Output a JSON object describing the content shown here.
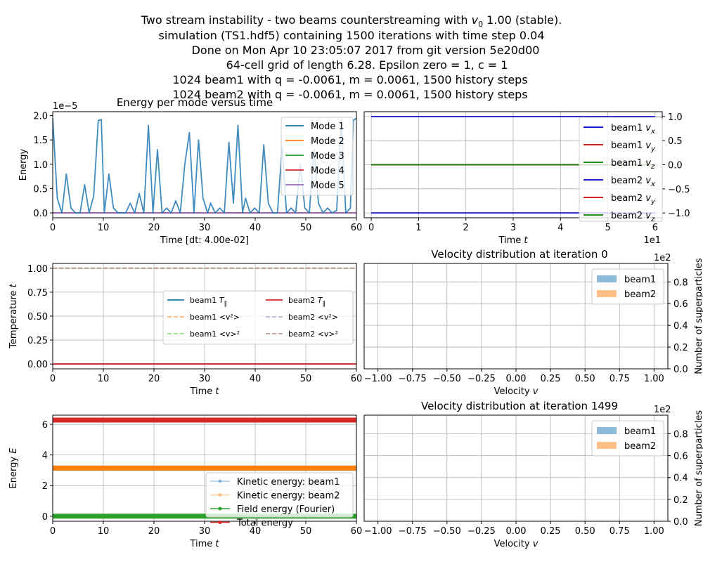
{
  "figure": {
    "title_lines": [
      "Two stream instability - two beams counterstreaming with v0 1.00 (stable).",
      "simulation (TS1.hdf5) containing 1500 iterations with time step 0.04",
      "Done on Mon Apr 10 23:05:07 2017 from git version 5e20d00",
      "64-cell grid of length 6.28. Epsilon zero = 1, c = 1",
      "1024 beam1 with q = -0.0061, m = 0.0061, 1500 history steps",
      "1024 beam2 with q = -0.0061, m = 0.0061, 1500 history steps"
    ]
  },
  "chart_data": [
    {
      "id": "energy_per_mode",
      "type": "line",
      "title": "Energy per mode versus time",
      "xlabel": "Time [dt: 4.00e-02]",
      "ylabel": "Energy",
      "y_exponent_label": "1e−5",
      "xlim": [
        0,
        60
      ],
      "ylim": [
        -0.1,
        2.08
      ],
      "xticks": [
        "0",
        "10",
        "20",
        "30",
        "40",
        "50",
        "60"
      ],
      "yticks": [
        "0.0",
        "0.5",
        "1.0",
        "1.5",
        "2.0"
      ],
      "grid": false,
      "legend_position": "upper-right",
      "series": [
        {
          "name": "Mode 1",
          "color": "#1f77b4",
          "x": [
            0,
            0.9,
            1.8,
            2.7,
            3.6,
            4.5,
            5.4,
            6.3,
            7.2,
            8.1,
            9.0,
            9.6,
            10.2,
            11.1,
            12.0,
            12.9,
            13.8,
            14.4,
            15.3,
            16.2,
            17.1,
            18.0,
            18.9,
            19.8,
            20.7,
            21.6,
            22.5,
            23.4,
            24.3,
            25.2,
            26.1,
            27.0,
            27.9,
            28.8,
            29.7,
            30.6,
            31.2,
            32.1,
            33.0,
            33.9,
            34.8,
            35.7,
            36.6,
            37.5,
            38.1,
            39.0,
            39.9,
            40.8,
            41.7,
            42.6,
            43.5,
            44.4,
            45.3,
            46.2,
            47.1,
            48.0,
            48.9,
            49.8,
            50.7,
            51.6,
            52.5,
            53.4,
            54.3,
            55.2,
            56.1,
            57.0,
            57.9,
            58.8,
            59.4,
            60
          ],
          "y": [
            1.95,
            0.3,
            0.0,
            0.8,
            0.1,
            0.0,
            0.0,
            0.58,
            0.0,
            0.35,
            1.9,
            1.92,
            0.0,
            0.8,
            0.1,
            0.0,
            0.0,
            0.0,
            0.2,
            0.0,
            0.4,
            0.0,
            1.8,
            0.0,
            1.3,
            0.0,
            0.1,
            0.0,
            0.25,
            0.0,
            1.0,
            1.65,
            0.0,
            1.5,
            0.3,
            0.0,
            0.2,
            0.0,
            0.1,
            0.0,
            1.45,
            0.2,
            1.8,
            0.0,
            0.3,
            0.0,
            0.1,
            0.0,
            1.4,
            0.2,
            0.0,
            0.0,
            1.35,
            0.0,
            0.1,
            0.0,
            1.0,
            0.1,
            0.0,
            1.3,
            0.2,
            0.0,
            0.1,
            0.0,
            0.05,
            1.9,
            0.0,
            0.1,
            1.9,
            1.95
          ]
        },
        {
          "name": "Mode 2",
          "color": "#ff7f0e",
          "x": [
            0,
            60
          ],
          "y": [
            0,
            0
          ]
        },
        {
          "name": "Mode 3",
          "color": "#2ca02c",
          "x": [
            0,
            60
          ],
          "y": [
            0,
            0
          ]
        },
        {
          "name": "Mode 4",
          "color": "#d62728",
          "x": [
            0,
            60
          ],
          "y": [
            0,
            0
          ]
        },
        {
          "name": "Mode 5",
          "color": "#9467bd",
          "x": [
            0,
            60
          ],
          "y": [
            0,
            0
          ]
        }
      ]
    },
    {
      "id": "mean_velocity",
      "type": "line",
      "xlabel": "Time t",
      "x_exponent_label": "1e1",
      "xlim": [
        -0.15,
        6.15
      ],
      "ylim": [
        -1.1,
        1.1
      ],
      "xticks": [
        "0",
        "1",
        "2",
        "3",
        "4",
        "5",
        "6"
      ],
      "yticks": [
        "1.0",
        "0.5",
        "0.0",
        "−0.5",
        "−1.0"
      ],
      "y_axis_side": "right",
      "grid": true,
      "legend_position": "right",
      "series": [
        {
          "name": "beam1 vx",
          "color": "#0000cc",
          "x": [
            0,
            6
          ],
          "y": [
            1,
            1
          ]
        },
        {
          "name": "beam1 vy",
          "color": "#cc0000",
          "x": [
            0,
            6
          ],
          "y": [
            0,
            0
          ]
        },
        {
          "name": "beam1 vz",
          "color": "#008000",
          "x": [
            0,
            6
          ],
          "y": [
            0,
            0
          ]
        },
        {
          "name": "beam2 vx",
          "color": "#0000cc",
          "x": [
            0,
            6
          ],
          "y": [
            -1,
            -1
          ]
        },
        {
          "name": "beam2 vy",
          "color": "#cc0000",
          "x": [
            0,
            6
          ],
          "y": [
            0,
            0
          ]
        },
        {
          "name": "beam2 vz",
          "color": "#008000",
          "x": [
            0,
            6
          ],
          "y": [
            0,
            0
          ]
        }
      ]
    },
    {
      "id": "temperature",
      "type": "line",
      "xlabel": "Time t",
      "ylabel": "Temperature t",
      "xlim": [
        0,
        60
      ],
      "ylim": [
        -0.05,
        1.05
      ],
      "xticks": [
        "0",
        "10",
        "20",
        "30",
        "40",
        "50",
        "60"
      ],
      "yticks": [
        "0.00",
        "0.25",
        "0.50",
        "0.75",
        "1.00"
      ],
      "grid": true,
      "legend_position": "center-right",
      "series": [
        {
          "name": "beam1 T∥",
          "color": "#1f77b4",
          "x": [
            0,
            60
          ],
          "y": [
            0,
            0
          ]
        },
        {
          "name": "beam1 <v²>",
          "color": "#ffbb78",
          "x": [
            0,
            60
          ],
          "y": [
            1,
            1
          ]
        },
        {
          "name": "beam1 <v>²",
          "color": "#98df8a",
          "x": [
            0,
            60
          ],
          "y": [
            1,
            1
          ]
        },
        {
          "name": "beam2 T∥",
          "color": "#d62728",
          "x": [
            0,
            60
          ],
          "y": [
            0,
            0
          ]
        },
        {
          "name": "beam2 <v²>",
          "color": "#c5b0d5",
          "x": [
            0,
            60
          ],
          "y": [
            1,
            1
          ]
        },
        {
          "name": "beam2 <v>²",
          "color": "#c49c94",
          "x": [
            0,
            60
          ],
          "y": [
            1,
            1
          ]
        }
      ]
    },
    {
      "id": "velocity_distribution_0",
      "type": "bar",
      "title": "Velocity distribution at iteration 0",
      "xlabel": "Velocity v",
      "ylabel": "Number of superparticles",
      "y_exponent_label": "1e2",
      "xlim": [
        -1.1,
        1.1
      ],
      "ylim": [
        0,
        0.97
      ],
      "xticks": [
        "−1.00",
        "−0.75",
        "−0.50",
        "−0.25",
        "0.00",
        "0.25",
        "0.50",
        "0.75",
        "1.00"
      ],
      "yticks": [
        "0.0",
        "0.2",
        "0.4",
        "0.6",
        "0.8"
      ],
      "y_axis_side": "right",
      "grid": true,
      "legend_position": "upper-right",
      "series": [
        {
          "name": "beam1",
          "color": "#8ebad9"
        },
        {
          "name": "beam2",
          "color": "#ffbf86"
        }
      ]
    },
    {
      "id": "energy_totals",
      "type": "line",
      "xlabel": "Time t",
      "ylabel": "Energy E",
      "xlim": [
        0,
        60
      ],
      "ylim": [
        -0.33,
        6.6
      ],
      "xticks": [
        "0",
        "10",
        "20",
        "30",
        "40",
        "50",
        "60"
      ],
      "yticks": [
        "0",
        "2",
        "4",
        "6"
      ],
      "grid": true,
      "legend_position": "lower-right",
      "series": [
        {
          "name": "Kinetic energy: beam1",
          "color": "#1f77b4",
          "x": [
            0,
            60
          ],
          "y": [
            3.14,
            3.14
          ]
        },
        {
          "name": "Kinetic energy: beam2",
          "color": "#ff7f0e",
          "x": [
            0,
            60
          ],
          "y": [
            3.14,
            3.14
          ]
        },
        {
          "name": "Field energy (Fourier)",
          "color": "#2ca02c",
          "x": [
            0,
            60
          ],
          "y": [
            0.0,
            0.0
          ]
        },
        {
          "name": "Total energy",
          "color": "#d62728",
          "x": [
            0,
            60
          ],
          "y": [
            6.28,
            6.28
          ]
        }
      ]
    },
    {
      "id": "velocity_distribution_1499",
      "type": "bar",
      "title": "Velocity distribution at iteration 1499",
      "xlabel": "Velocity v",
      "ylabel": "Number of superparticles",
      "y_exponent_label": "1e2",
      "xlim": [
        -1.1,
        1.1
      ],
      "ylim": [
        0,
        0.97
      ],
      "xticks": [
        "−1.00",
        "−0.75",
        "−0.50",
        "−0.25",
        "0.00",
        "0.25",
        "0.50",
        "0.75",
        "1.00"
      ],
      "yticks": [
        "0.0",
        "0.2",
        "0.4",
        "0.6",
        "0.8"
      ],
      "y_axis_side": "right",
      "grid": true,
      "legend_position": "upper-right",
      "series": [
        {
          "name": "beam1",
          "color": "#8ebad9"
        },
        {
          "name": "beam2",
          "color": "#ffbf86"
        }
      ]
    }
  ]
}
